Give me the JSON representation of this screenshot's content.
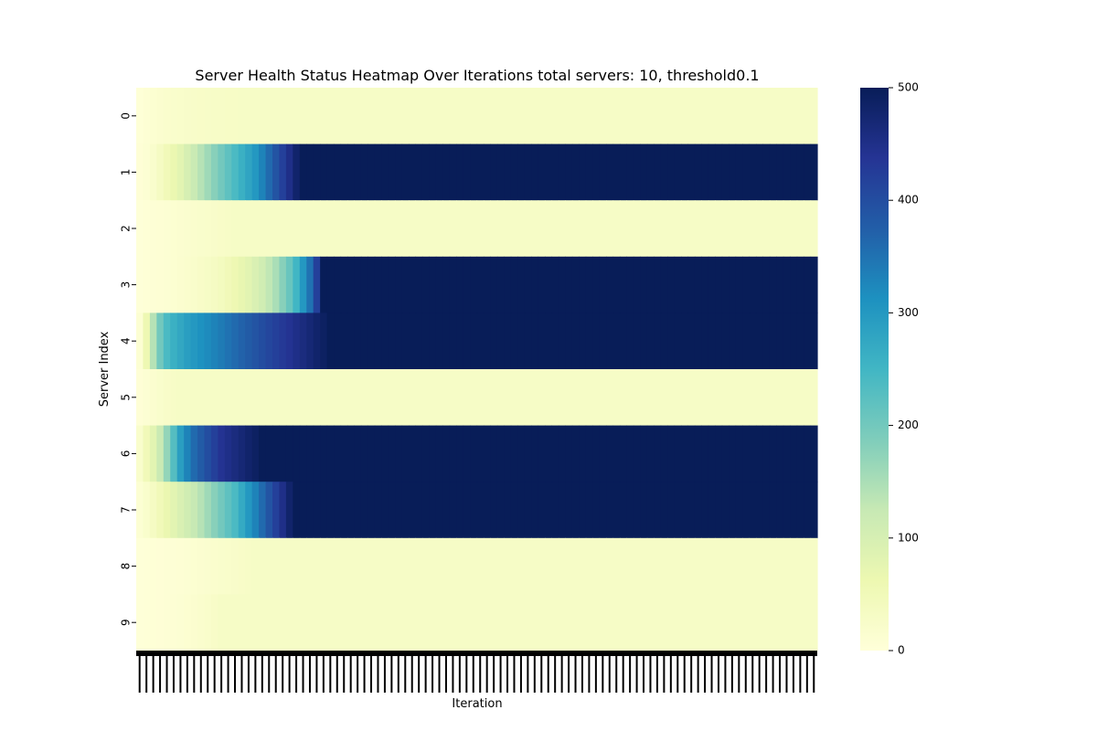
{
  "chart_data": {
    "type": "heatmap",
    "title": "Server Health Status Heatmap Over Iterations total servers: 10, threshold0.1",
    "xlabel": "Iteration",
    "ylabel": "Server Index",
    "rows": [
      "0",
      "1",
      "2",
      "3",
      "4",
      "5",
      "6",
      "7",
      "8",
      "9"
    ],
    "x_range": [
      0,
      99
    ],
    "colormap": "YlGnBu",
    "vmin": 0,
    "vmax": 500,
    "colorbar_ticks": [
      0,
      100,
      200,
      300,
      400,
      500
    ],
    "row_values": [
      [
        3,
        8,
        12,
        15,
        18,
        20,
        22,
        24,
        25,
        26,
        27,
        28,
        28,
        29,
        29,
        30,
        30,
        30,
        30,
        30,
        30,
        30,
        30,
        30,
        30,
        30,
        30,
        30,
        30,
        30,
        30,
        30,
        30,
        30,
        30,
        30,
        30,
        30,
        30,
        30,
        30,
        30,
        30,
        30,
        30,
        30,
        30,
        30,
        30,
        30,
        30,
        30,
        30,
        30,
        30,
        30,
        30,
        30,
        30,
        30,
        30,
        30,
        30,
        30,
        30,
        30,
        30,
        30,
        30,
        30,
        30,
        30,
        30,
        30,
        30,
        30,
        30,
        30,
        30,
        30,
        30,
        30,
        30,
        30,
        30,
        30,
        30,
        30,
        30,
        30,
        30,
        30,
        30,
        30,
        30,
        30,
        30,
        30,
        30,
        30
      ],
      [
        5,
        10,
        20,
        35,
        50,
        65,
        80,
        100,
        120,
        140,
        160,
        180,
        200,
        220,
        240,
        260,
        280,
        300,
        330,
        360,
        390,
        420,
        450,
        480,
        500,
        500,
        500,
        500,
        500,
        500,
        500,
        500,
        500,
        500,
        500,
        500,
        500,
        500,
        500,
        500,
        500,
        500,
        500,
        500,
        500,
        500,
        500,
        500,
        500,
        500,
        500,
        500,
        500,
        500,
        500,
        500,
        500,
        500,
        500,
        500,
        500,
        500,
        500,
        500,
        500,
        500,
        500,
        500,
        500,
        500,
        500,
        500,
        500,
        500,
        500,
        500,
        500,
        500,
        500,
        500,
        500,
        500,
        500,
        500,
        500,
        500,
        500,
        500,
        500,
        500,
        500,
        500,
        500,
        500,
        500,
        500,
        500,
        500,
        500,
        500
      ],
      [
        2,
        4,
        6,
        8,
        10,
        12,
        14,
        16,
        18,
        20,
        22,
        24,
        26,
        28,
        30,
        30,
        30,
        30,
        30,
        30,
        30,
        30,
        30,
        30,
        30,
        30,
        30,
        30,
        30,
        30,
        30,
        30,
        30,
        30,
        30,
        30,
        30,
        30,
        30,
        30,
        30,
        30,
        30,
        30,
        30,
        30,
        30,
        30,
        30,
        30,
        30,
        30,
        30,
        30,
        30,
        30,
        30,
        30,
        30,
        30,
        30,
        30,
        30,
        30,
        30,
        30,
        30,
        30,
        30,
        30,
        30,
        30,
        30,
        30,
        30,
        30,
        30,
        30,
        30,
        30,
        30,
        30,
        30,
        30,
        30,
        30,
        30,
        30,
        30,
        30,
        30,
        30,
        30,
        30,
        30,
        30,
        30,
        30,
        30,
        30
      ],
      [
        2,
        4,
        6,
        8,
        10,
        12,
        15,
        18,
        22,
        26,
        30,
        35,
        40,
        50,
        60,
        70,
        80,
        95,
        110,
        130,
        150,
        180,
        210,
        250,
        300,
        350,
        420,
        500,
        500,
        500,
        500,
        500,
        500,
        500,
        500,
        500,
        500,
        500,
        500,
        500,
        500,
        500,
        500,
        500,
        500,
        500,
        500,
        500,
        500,
        500,
        500,
        500,
        500,
        500,
        500,
        500,
        500,
        500,
        500,
        500,
        500,
        500,
        500,
        500,
        500,
        500,
        500,
        500,
        500,
        500,
        500,
        500,
        500,
        500,
        500,
        500,
        500,
        500,
        500,
        500,
        500,
        500,
        500,
        500,
        500,
        500,
        500,
        500,
        500,
        500,
        500,
        500,
        500,
        500,
        500,
        500,
        500,
        500,
        500,
        500
      ],
      [
        10,
        60,
        140,
        200,
        240,
        260,
        275,
        290,
        300,
        310,
        320,
        330,
        340,
        350,
        360,
        370,
        380,
        390,
        400,
        410,
        420,
        430,
        440,
        450,
        460,
        470,
        480,
        490,
        500,
        500,
        500,
        500,
        500,
        500,
        500,
        500,
        500,
        500,
        500,
        500,
        500,
        500,
        500,
        500,
        500,
        500,
        500,
        500,
        500,
        500,
        500,
        500,
        500,
        500,
        500,
        500,
        500,
        500,
        500,
        500,
        500,
        500,
        500,
        500,
        500,
        500,
        500,
        500,
        500,
        500,
        500,
        500,
        500,
        500,
        500,
        500,
        500,
        500,
        500,
        500,
        500,
        500,
        500,
        500,
        500,
        500,
        500,
        500,
        500,
        500,
        500,
        500,
        500,
        500,
        500,
        500,
        500,
        500,
        500,
        500
      ],
      [
        5,
        10,
        15,
        20,
        25,
        28,
        30,
        30,
        30,
        30,
        30,
        30,
        30,
        30,
        30,
        30,
        30,
        30,
        30,
        30,
        30,
        30,
        30,
        30,
        30,
        30,
        30,
        30,
        30,
        30,
        30,
        30,
        30,
        30,
        30,
        30,
        30,
        30,
        30,
        30,
        30,
        30,
        30,
        30,
        30,
        30,
        30,
        30,
        30,
        30,
        30,
        30,
        30,
        30,
        30,
        30,
        30,
        30,
        30,
        30,
        30,
        30,
        30,
        30,
        30,
        30,
        30,
        30,
        30,
        30,
        30,
        30,
        30,
        30,
        30,
        30,
        30,
        30,
        30,
        30,
        30,
        30,
        30,
        30,
        30,
        30,
        30,
        30,
        30,
        30,
        30,
        30,
        30,
        30,
        30,
        30,
        30,
        30,
        30,
        30
      ],
      [
        20,
        50,
        80,
        120,
        170,
        230,
        290,
        330,
        360,
        380,
        400,
        420,
        440,
        450,
        460,
        470,
        480,
        490,
        500,
        500,
        500,
        500,
        500,
        500,
        500,
        500,
        500,
        500,
        500,
        500,
        500,
        500,
        500,
        500,
        500,
        500,
        500,
        500,
        500,
        500,
        500,
        500,
        500,
        500,
        500,
        500,
        500,
        500,
        500,
        500,
        500,
        500,
        500,
        500,
        500,
        500,
        500,
        500,
        500,
        500,
        500,
        500,
        500,
        500,
        500,
        500,
        500,
        500,
        500,
        500,
        500,
        500,
        500,
        500,
        500,
        500,
        500,
        500,
        500,
        500,
        500,
        500,
        500,
        500,
        500,
        500,
        500,
        500,
        500,
        500,
        500,
        500,
        500,
        500,
        500,
        500,
        500,
        500,
        500,
        500
      ],
      [
        10,
        20,
        35,
        50,
        65,
        80,
        95,
        110,
        125,
        140,
        160,
        180,
        200,
        220,
        240,
        270,
        300,
        330,
        360,
        390,
        420,
        450,
        480,
        500,
        500,
        500,
        500,
        500,
        500,
        500,
        500,
        500,
        500,
        500,
        500,
        500,
        500,
        500,
        500,
        500,
        500,
        500,
        500,
        500,
        500,
        500,
        500,
        500,
        500,
        500,
        500,
        500,
        500,
        500,
        500,
        500,
        500,
        500,
        500,
        500,
        500,
        500,
        500,
        500,
        500,
        500,
        500,
        500,
        500,
        500,
        500,
        500,
        500,
        500,
        500,
        500,
        500,
        500,
        500,
        500,
        500,
        500,
        500,
        500,
        500,
        500,
        500,
        500,
        500,
        500,
        500,
        500,
        500,
        500,
        500,
        500,
        500,
        500,
        500,
        500
      ],
      [
        2,
        3,
        4,
        5,
        6,
        7,
        8,
        10,
        12,
        14,
        16,
        18,
        20,
        22,
        24,
        26,
        28,
        30,
        30,
        30,
        30,
        30,
        30,
        30,
        30,
        30,
        30,
        30,
        30,
        30,
        30,
        30,
        30,
        30,
        30,
        30,
        30,
        30,
        30,
        30,
        30,
        30,
        30,
        30,
        30,
        30,
        30,
        30,
        30,
        30,
        30,
        30,
        30,
        30,
        30,
        30,
        30,
        30,
        30,
        30,
        30,
        30,
        30,
        30,
        30,
        30,
        30,
        30,
        30,
        30,
        30,
        30,
        30,
        30,
        30,
        30,
        30,
        30,
        30,
        30,
        30,
        30,
        30,
        30,
        30,
        30,
        30,
        30,
        30,
        30,
        30,
        30,
        30,
        30,
        30,
        30,
        30,
        30,
        30,
        30
      ],
      [
        2,
        3,
        4,
        5,
        6,
        8,
        10,
        12,
        15,
        18,
        22,
        26,
        30,
        30,
        30,
        30,
        30,
        30,
        30,
        30,
        30,
        30,
        30,
        30,
        30,
        30,
        30,
        30,
        30,
        30,
        30,
        30,
        30,
        30,
        30,
        30,
        30,
        30,
        30,
        30,
        30,
        30,
        30,
        30,
        30,
        30,
        30,
        30,
        30,
        30,
        30,
        30,
        30,
        30,
        30,
        30,
        30,
        30,
        30,
        30,
        30,
        30,
        30,
        30,
        30,
        30,
        30,
        30,
        30,
        30,
        30,
        30,
        30,
        30,
        30,
        30,
        30,
        30,
        30,
        30,
        30,
        30,
        30,
        30,
        30,
        30,
        30,
        30,
        30,
        30,
        30,
        30,
        30,
        30,
        30,
        30,
        30,
        30,
        30,
        30
      ]
    ]
  }
}
